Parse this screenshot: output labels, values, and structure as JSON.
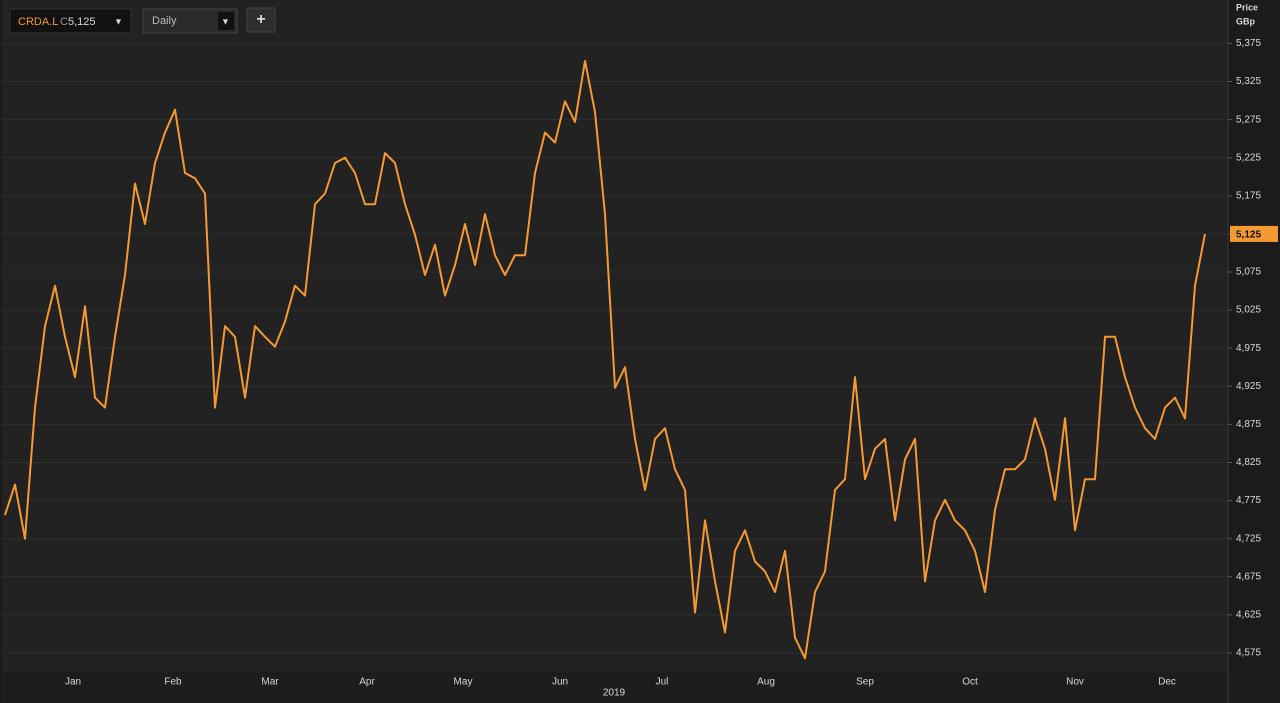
{
  "chart_data": {
    "type": "line",
    "ticker": "CRDA.L",
    "close_prefix": "C",
    "last_value_label": "5,125",
    "interval": "Daily",
    "add_button": "+",
    "y_axis_title": "Price",
    "y_axis_unit": "GBp",
    "year_label": "2019",
    "color": "#f59a33",
    "grid": true,
    "xlim": [
      -0.5,
      122.3
    ],
    "xticks": [
      {
        "value": 6.8,
        "label": "Jan"
      },
      {
        "value": 16.8,
        "label": "Feb"
      },
      {
        "value": 26.5,
        "label": "Mar"
      },
      {
        "value": 36.2,
        "label": "Apr"
      },
      {
        "value": 45.8,
        "label": "May"
      },
      {
        "value": 55.5,
        "label": "Jun"
      },
      {
        "value": 65.7,
        "label": "Jul"
      },
      {
        "value": 76.1,
        "label": "Aug"
      },
      {
        "value": 86,
        "label": "Sep"
      },
      {
        "value": 96.5,
        "label": "Oct"
      },
      {
        "value": 107,
        "label": "Nov"
      },
      {
        "value": 116.2,
        "label": "Dec"
      }
    ],
    "ylim": [
      4550,
      5432
    ],
    "yticks": [
      {
        "value": 4575,
        "label": "4,575"
      },
      {
        "value": 4625,
        "label": "4,625"
      },
      {
        "value": 4675,
        "label": "4,675"
      },
      {
        "value": 4725,
        "label": "4,725"
      },
      {
        "value": 4775,
        "label": "4,775"
      },
      {
        "value": 4825,
        "label": "4,825"
      },
      {
        "value": 4875,
        "label": "4,875"
      },
      {
        "value": 4925,
        "label": "4,925"
      },
      {
        "value": 4975,
        "label": "4,975"
      },
      {
        "value": 5025,
        "label": "5,025"
      },
      {
        "value": 5075,
        "label": "5,075"
      },
      {
        "value": 5125,
        "label": "5,125"
      },
      {
        "value": 5175,
        "label": "5,175"
      },
      {
        "value": 5225,
        "label": "5,225"
      },
      {
        "value": 5275,
        "label": "5,275"
      },
      {
        "value": 5325,
        "label": "5,325"
      },
      {
        "value": 5375,
        "label": "5,375"
      }
    ],
    "values": [
      4756,
      4796,
      4725,
      4897,
      5004,
      5057,
      4990,
      4937,
      5030,
      4910,
      4897,
      4990,
      5071,
      5191,
      5138,
      5218,
      5258,
      5288,
      5205,
      5198,
      5178,
      4897,
      5004,
      4990,
      4910,
      5004,
      4990,
      4977,
      5010,
      5057,
      5044,
      5164,
      5178,
      5218,
      5225,
      5205,
      5164,
      5164,
      5231,
      5218,
      5164,
      5124,
      5071,
      5111,
      5044,
      5084,
      5138,
      5084,
      5151,
      5097,
      5071,
      5097,
      5097,
      5205,
      5258,
      5245,
      5299,
      5272,
      5352,
      5285,
      5151,
      4923,
      4950,
      4856,
      4789,
      4856,
      4870,
      4816,
      4789,
      4628,
      4749,
      4669,
      4602,
      4709,
      4736,
      4695,
      4682,
      4655,
      4709,
      4595,
      4568,
      4655,
      4682,
      4789,
      4803,
      4937,
      4803,
      4843,
      4856,
      4749,
      4829,
      4856,
      4669,
      4749,
      4776,
      4749,
      4736,
      4709,
      4655,
      4763,
      4816,
      4816,
      4829,
      4883,
      4843,
      4776,
      4883,
      4736,
      4803,
      4803,
      4990,
      4990,
      4937,
      4897,
      4870,
      4856,
      4897,
      4910,
      4883,
      5057,
      5125
    ]
  }
}
